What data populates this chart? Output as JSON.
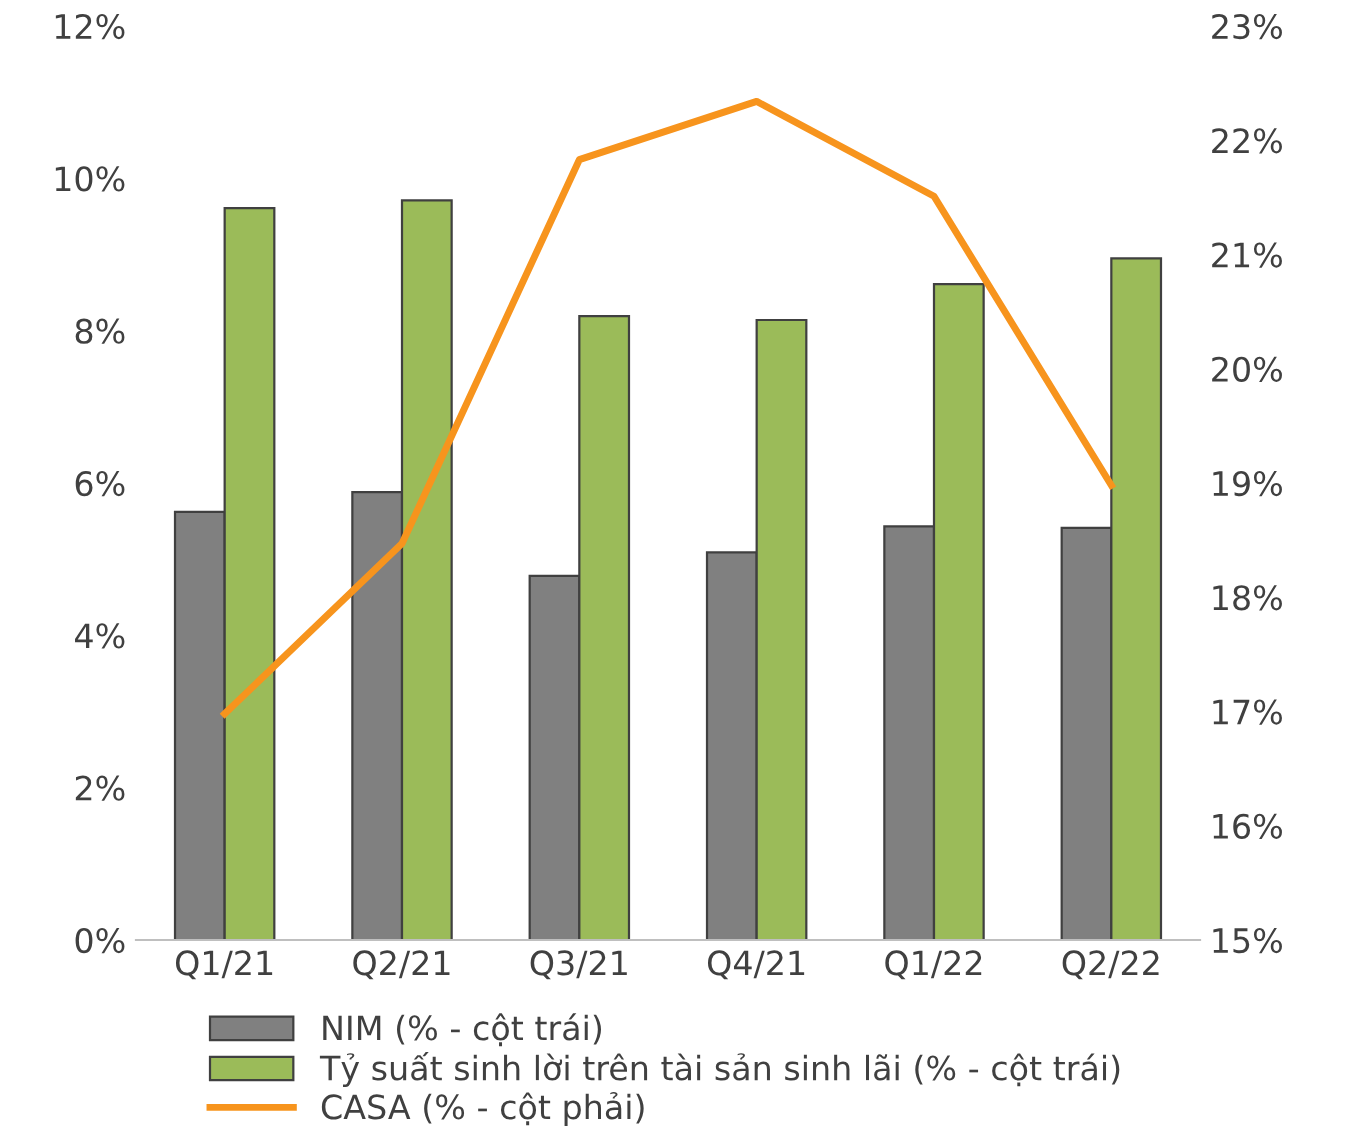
{
  "chart_data": {
    "type": "bar",
    "categories": [
      "Q1/21",
      "Q2/21",
      "Q3/21",
      "Q4/21",
      "Q1/22",
      "Q2/22"
    ],
    "series": [
      {
        "name": "NIM (% - cột trái)",
        "color": "#808080",
        "values": [
          5.62,
          5.88,
          4.78,
          5.09,
          5.43,
          5.41
        ]
      },
      {
        "name": "Tỷ suất sinh lời trên tài sản sinh lãi (% - cột trái)",
        "color": "#9bbb59",
        "values": [
          9.61,
          9.71,
          8.19,
          8.14,
          8.61,
          8.95
        ]
      },
      {
        "name": "CASA (% - cột phải)",
        "type": "line",
        "axis": "y2",
        "color": "#f7941d",
        "values": [
          16.98,
          18.47,
          21.83,
          22.34,
          21.51,
          18.98
        ]
      }
    ],
    "ylim": [
      0,
      12
    ],
    "yticks": [
      {
        "value": 0,
        "label": "0%"
      },
      {
        "value": 2,
        "label": "2%"
      },
      {
        "value": 4,
        "label": "4%"
      },
      {
        "value": 6,
        "label": "6%"
      },
      {
        "value": 8,
        "label": "8%"
      },
      {
        "value": 10,
        "label": "10%"
      },
      {
        "value": 12,
        "label": "12%"
      }
    ],
    "y2lim": [
      15,
      23
    ],
    "y2ticks": [
      {
        "value": 15,
        "label": "15%"
      },
      {
        "value": 16,
        "label": "16%"
      },
      {
        "value": 17,
        "label": "17%"
      },
      {
        "value": 18,
        "label": "18%"
      },
      {
        "value": 19,
        "label": "19%"
      },
      {
        "value": 20,
        "label": "20%"
      },
      {
        "value": 21,
        "label": "21%"
      },
      {
        "value": 22,
        "label": "22%"
      },
      {
        "value": 23,
        "label": "23%"
      }
    ],
    "grid": false,
    "legend": "bottom"
  }
}
